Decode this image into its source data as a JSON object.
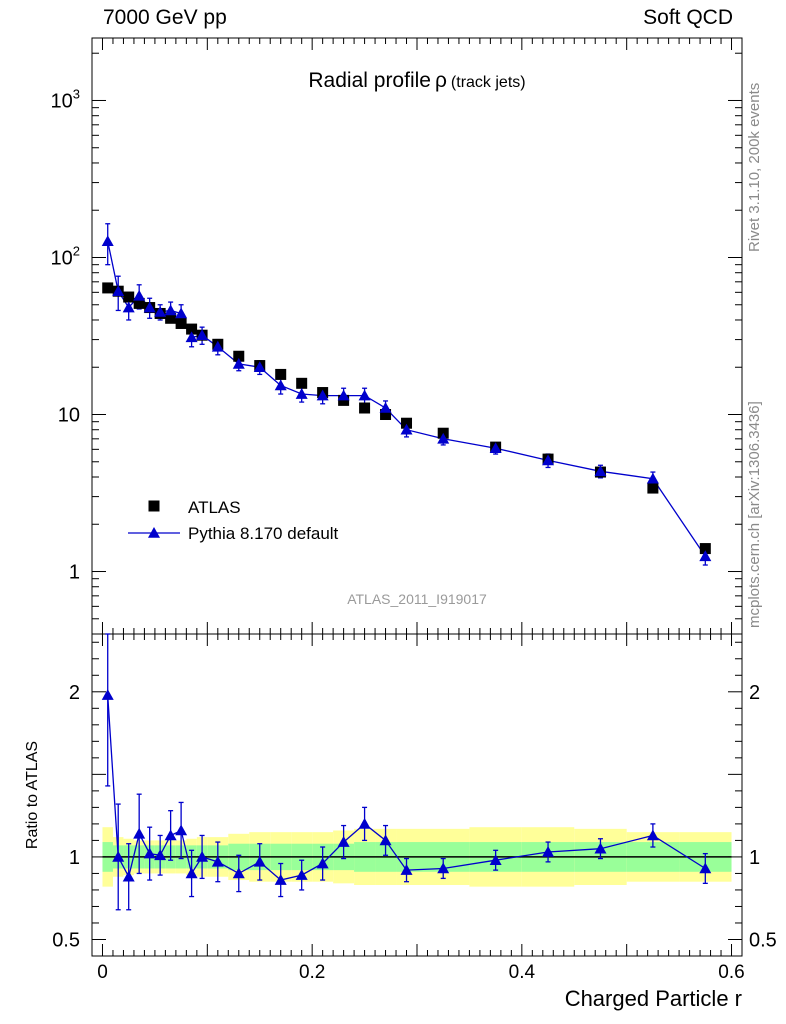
{
  "header": {
    "left": "7000 GeV pp",
    "right": "Soft QCD"
  },
  "side": {
    "rivet": "Rivet 3.1.10,  200k events",
    "mcplots": "mcplots.cern.ch [arXiv:1306.3436]"
  },
  "chart_data": [
    {
      "type": "scatter",
      "title": "Radial profile",
      "title_symbol": "ρ",
      "title_suffix": "(track jets)",
      "watermark": "ATLAS_2011_I919017",
      "xlabel": "",
      "ylabel": "",
      "log_y": true,
      "xlim": [
        -0.01,
        0.61
      ],
      "ylim": [
        0.4,
        2500
      ],
      "ytick_labels": [
        {
          "value": 1000,
          "base": "10",
          "exp": "3"
        },
        {
          "value": 100,
          "base": "10",
          "exp": "2"
        },
        {
          "value": 10,
          "base": "10",
          "exp": ""
        },
        {
          "value": 1,
          "base": "1",
          "exp": ""
        }
      ],
      "legend_position": "bottom-left",
      "series": [
        {
          "name": "ATLAS",
          "marker": "square",
          "color": "#000000",
          "x": [
            0.005,
            0.015,
            0.025,
            0.035,
            0.045,
            0.055,
            0.065,
            0.075,
            0.085,
            0.095,
            0.11,
            0.13,
            0.15,
            0.17,
            0.19,
            0.21,
            0.23,
            0.25,
            0.27,
            0.29,
            0.325,
            0.375,
            0.425,
            0.475,
            0.525,
            0.575
          ],
          "y": [
            64,
            61,
            56,
            51,
            48,
            44,
            41,
            38,
            35,
            32,
            28,
            23.5,
            20.5,
            18,
            15.8,
            13.8,
            12.3,
            11,
            10,
            8.8,
            7.6,
            6.2,
            5.2,
            4.3,
            3.4,
            1.4
          ]
        },
        {
          "name": "Pythia 8.170 default",
          "marker": "triangle",
          "color": "#0000cc",
          "x": [
            0.005,
            0.015,
            0.025,
            0.035,
            0.045,
            0.055,
            0.065,
            0.075,
            0.085,
            0.095,
            0.11,
            0.13,
            0.15,
            0.17,
            0.19,
            0.21,
            0.23,
            0.25,
            0.27,
            0.29,
            0.325,
            0.375,
            0.425,
            0.475,
            0.525,
            0.575
          ],
          "y": [
            127,
            61,
            48,
            57,
            48,
            45,
            46,
            44,
            31,
            32,
            27,
            21,
            20,
            15.3,
            13.5,
            13.2,
            13.2,
            13.2,
            11,
            8,
            7,
            6.1,
            5.1,
            4.35,
            3.9,
            1.25
          ],
          "yerr": [
            37,
            15,
            8,
            10,
            7,
            5,
            6,
            6,
            4,
            4,
            3,
            2,
            2,
            1.8,
            1.5,
            1.5,
            1.5,
            1.5,
            1.2,
            0.8,
            0.6,
            0.5,
            0.5,
            0.4,
            0.4,
            0.15
          ]
        }
      ]
    },
    {
      "type": "scatter",
      "xlabel": "Charged Particle r",
      "ylabel": "Ratio to ATLAS",
      "xlim": [
        -0.01,
        0.61
      ],
      "ylim": [
        0.4,
        2.35
      ],
      "xtick_labels": [
        {
          "value": 0,
          "label": "0"
        },
        {
          "value": 0.2,
          "label": "0.2"
        },
        {
          "value": 0.4,
          "label": "0.4"
        },
        {
          "value": 0.6,
          "label": "0.6"
        }
      ],
      "ytick_labels": [
        {
          "value": 2,
          "label": "2"
        },
        {
          "value": 1,
          "label": "1"
        },
        {
          "value": 0.5,
          "label": "0.5"
        }
      ],
      "bins": [
        0,
        0.01,
        0.02,
        0.03,
        0.04,
        0.05,
        0.06,
        0.07,
        0.08,
        0.09,
        0.1,
        0.12,
        0.14,
        0.16,
        0.18,
        0.2,
        0.22,
        0.24,
        0.26,
        0.28,
        0.3,
        0.35,
        0.4,
        0.45,
        0.5,
        0.55,
        0.6
      ],
      "band_inner": [
        0.09,
        0.07,
        0.07,
        0.07,
        0.07,
        0.07,
        0.07,
        0.07,
        0.07,
        0.07,
        0.07,
        0.08,
        0.08,
        0.08,
        0.08,
        0.08,
        0.08,
        0.09,
        0.09,
        0.09,
        0.09,
        0.09,
        0.09,
        0.09,
        0.09,
        0.09
      ],
      "band_outer": [
        0.18,
        0.12,
        0.11,
        0.1,
        0.1,
        0.1,
        0.1,
        0.1,
        0.11,
        0.12,
        0.12,
        0.14,
        0.15,
        0.15,
        0.15,
        0.15,
        0.16,
        0.17,
        0.17,
        0.17,
        0.17,
        0.18,
        0.18,
        0.17,
        0.15,
        0.15
      ],
      "band_inner_color": "#99ff99",
      "band_outer_color": "#ffff99",
      "reference_line": 1,
      "series": [
        {
          "name": "Pythia 8.170 default",
          "marker": "triangle",
          "color": "#0000cc",
          "x": [
            0.005,
            0.015,
            0.025,
            0.035,
            0.045,
            0.055,
            0.065,
            0.075,
            0.085,
            0.095,
            0.11,
            0.13,
            0.15,
            0.17,
            0.19,
            0.21,
            0.23,
            0.25,
            0.27,
            0.29,
            0.325,
            0.375,
            0.425,
            0.475,
            0.525,
            0.575
          ],
          "y": [
            1.98,
            1.0,
            0.88,
            1.14,
            1.02,
            1.01,
            1.13,
            1.16,
            0.9,
            1.0,
            0.97,
            0.9,
            0.97,
            0.86,
            0.89,
            0.96,
            1.09,
            1.2,
            1.1,
            0.92,
            0.93,
            0.98,
            1.03,
            1.05,
            1.13,
            0.93
          ],
          "yerr": [
            0.55,
            0.32,
            0.2,
            0.24,
            0.16,
            0.12,
            0.15,
            0.17,
            0.14,
            0.13,
            0.12,
            0.11,
            0.11,
            0.1,
            0.09,
            0.1,
            0.1,
            0.1,
            0.09,
            0.07,
            0.06,
            0.06,
            0.06,
            0.06,
            0.07,
            0.09
          ]
        }
      ]
    }
  ]
}
